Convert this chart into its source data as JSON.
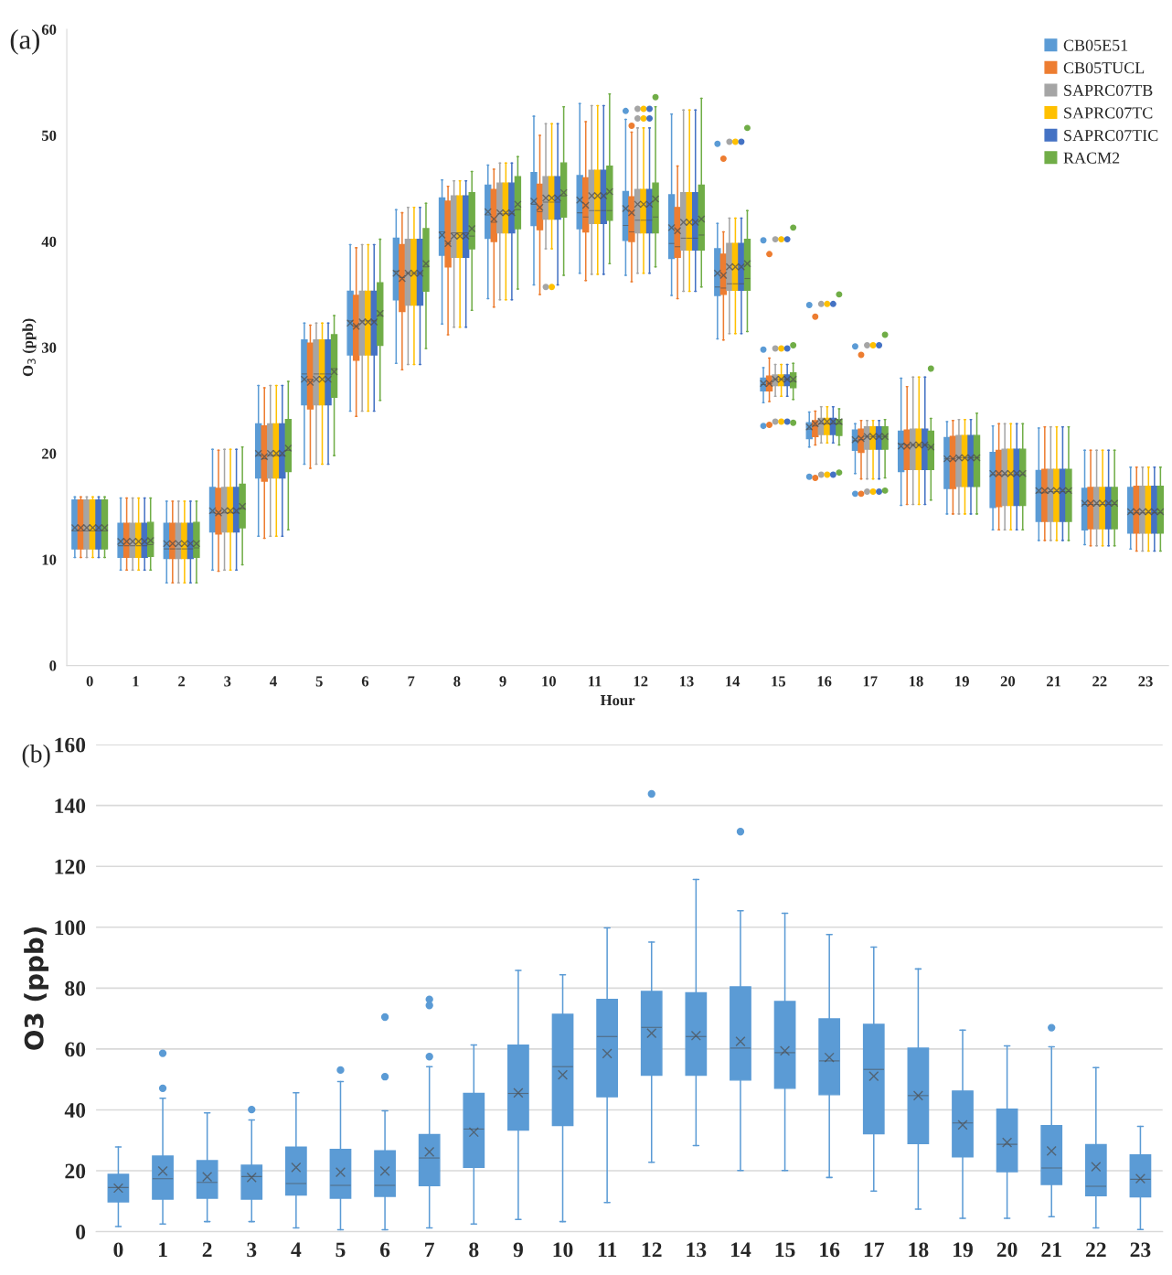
{
  "chart_data": [
    {
      "type": "box",
      "title": "(a)",
      "xlabel": "Hour",
      "ylabel": "O$_{3}$ (ppb)",
      "ylim": [
        0,
        60
      ],
      "yticks": [
        0,
        10,
        20,
        30,
        40,
        50,
        60
      ],
      "grid": false,
      "legend": "top right",
      "categories": [
        "0",
        "1",
        "2",
        "3",
        "4",
        "5",
        "6",
        "7",
        "8",
        "9",
        "10",
        "11",
        "12",
        "13",
        "14",
        "15",
        "16",
        "17",
        "18",
        "19",
        "20",
        "21",
        "22",
        "23"
      ],
      "series": [
        {
          "name": "CB05E51",
          "color": "#5b9bd5",
          "boxes": [
            {
              "low": 10.2,
              "q1": 11,
              "median": 12.7,
              "q3": 15.6,
              "high": 15.9,
              "mean": 13
            },
            {
              "low": 9,
              "q1": 10.2,
              "median": 11.3,
              "q3": 13.4,
              "high": 15.8,
              "mean": 11.7
            },
            {
              "low": 7.8,
              "q1": 10.1,
              "median": 11,
              "q3": 13.4,
              "high": 15.5,
              "mean": 11.5
            },
            {
              "low": 9,
              "q1": 12.6,
              "median": 14.4,
              "q3": 16.8,
              "high": 20.4,
              "mean": 14.6
            },
            {
              "low": 12.2,
              "q1": 17.7,
              "median": 19.8,
              "q3": 22.8,
              "high": 26.4,
              "mean": 20
            },
            {
              "low": 19,
              "q1": 24.6,
              "median": 27.5,
              "q3": 30.7,
              "high": 32.3,
              "mean": 27
            },
            {
              "low": 24,
              "q1": 29.3,
              "median": 32.5,
              "q3": 35.3,
              "high": 39.7,
              "mean": 32.3
            },
            {
              "low": 28.5,
              "q1": 34.5,
              "median": 37.2,
              "q3": 40.3,
              "high": 43,
              "mean": 37
            },
            {
              "low": 32.2,
              "q1": 38.7,
              "median": 40.9,
              "q3": 44.1,
              "high": 45.8,
              "mean": 40.6
            },
            {
              "low": 34.6,
              "q1": 40.3,
              "median": 42.5,
              "q3": 45.3,
              "high": 47.2,
              "mean": 42.8
            },
            {
              "low": 35.9,
              "q1": 41.5,
              "median": 43.5,
              "q3": 46.5,
              "high": 51.8,
              "mean": 43.8
            },
            {
              "low": 37,
              "q1": 41.2,
              "median": 42.7,
              "q3": 46.2,
              "high": 53,
              "mean": 43.9
            },
            {
              "low": 36.8,
              "q1": 40.1,
              "median": 41.5,
              "q3": 44.7,
              "high": 51.5,
              "mean": 43.1,
              "outliers": [
                52.3
              ]
            },
            {
              "low": 34.9,
              "q1": 38.4,
              "median": 39.8,
              "q3": 44.4,
              "high": 52,
              "mean": 41.3
            },
            {
              "low": 30.8,
              "q1": 34.9,
              "median": 35.7,
              "q3": 39.3,
              "high": 41.7,
              "mean": 37,
              "outliers": [
                49.2
              ]
            },
            {
              "low": 24.8,
              "q1": 25.9,
              "median": 26.5,
              "q3": 27.1,
              "high": 28.1,
              "mean": 26.6,
              "outliers": [
                40.1,
                29.8,
                22.6
              ]
            },
            {
              "low": 20.6,
              "q1": 21.4,
              "median": 22.3,
              "q3": 22.9,
              "high": 23.9,
              "mean": 22.5,
              "outliers": [
                34,
                17.8
              ]
            },
            {
              "low": 18.1,
              "q1": 20.3,
              "median": 21.2,
              "q3": 22.2,
              "high": 22.8,
              "mean": 21.3,
              "outliers": [
                30.1,
                16.2
              ]
            },
            {
              "low": 15.1,
              "q1": 18.3,
              "median": 20.9,
              "q3": 22.1,
              "high": 27.1,
              "mean": 20.7
            },
            {
              "low": 14.3,
              "q1": 16.7,
              "median": 19.5,
              "q3": 21.5,
              "high": 23,
              "mean": 19.5
            },
            {
              "low": 12.8,
              "q1": 14.9,
              "median": 18,
              "q3": 20.1,
              "high": 22.6,
              "mean": 18.1
            },
            {
              "low": 11.8,
              "q1": 13.6,
              "median": 16.3,
              "q3": 18.4,
              "high": 22.4,
              "mean": 16.5
            },
            {
              "low": 11.4,
              "q1": 12.8,
              "median": 15.2,
              "q3": 16.7,
              "high": 20.3,
              "mean": 15.3
            },
            {
              "low": 11,
              "q1": 12.5,
              "median": 14.4,
              "q3": 16.8,
              "high": 18.7,
              "mean": 14.5
            }
          ]
        },
        {
          "name": "CB05TUCL",
          "color": "#ed7d31",
          "boxes": [
            {
              "low": 10.2,
              "q1": 11,
              "median": 12.7,
              "q3": 15.6,
              "high": 15.9,
              "mean": 13
            },
            {
              "low": 9,
              "q1": 10.2,
              "median": 11.3,
              "q3": 13.4,
              "high": 15.8,
              "mean": 11.7
            },
            {
              "low": 7.8,
              "q1": 10.1,
              "median": 11,
              "q3": 13.4,
              "high": 15.5,
              "mean": 11.5
            },
            {
              "low": 8.9,
              "q1": 12.4,
              "median": 14.3,
              "q3": 16.7,
              "high": 20.3,
              "mean": 14.4
            },
            {
              "low": 12,
              "q1": 17.4,
              "median": 19.5,
              "q3": 22.6,
              "high": 26.2,
              "mean": 19.7
            },
            {
              "low": 18.6,
              "q1": 24.2,
              "median": 27,
              "q3": 30.4,
              "high": 32.1,
              "mean": 26.7
            },
            {
              "low": 23.5,
              "q1": 28.8,
              "median": 32,
              "q3": 34.9,
              "high": 39.4,
              "mean": 32
            },
            {
              "low": 27.9,
              "q1": 33.4,
              "median": 36.6,
              "q3": 39.7,
              "high": 42.7,
              "mean": 36.5
            },
            {
              "low": 31.2,
              "q1": 37.6,
              "median": 39.8,
              "q3": 43.8,
              "high": 45.2,
              "mean": 39.8
            },
            {
              "low": 33.8,
              "q1": 40,
              "median": 41.8,
              "q3": 44.9,
              "high": 46.8,
              "mean": 42.1
            },
            {
              "low": 35,
              "q1": 41.1,
              "median": 42.8,
              "q3": 45.4,
              "high": 50,
              "mean": 43.2
            },
            {
              "low": 36.3,
              "q1": 40.9,
              "median": 42.3,
              "q3": 46,
              "high": 51.3,
              "mean": 43.4
            },
            {
              "low": 36.2,
              "q1": 40,
              "median": 40.9,
              "q3": 44.2,
              "high": 50.3,
              "mean": 42.7,
              "outliers": [
                50.9
              ]
            },
            {
              "low": 34.6,
              "q1": 38.5,
              "median": 39.5,
              "q3": 43.2,
              "high": 47.1,
              "mean": 41
            },
            {
              "low": 30.7,
              "q1": 35,
              "median": 35.6,
              "q3": 38.8,
              "high": 40.9,
              "mean": 36.8,
              "outliers": [
                47.8
              ]
            },
            {
              "low": 24.9,
              "q1": 25.9,
              "median": 26.6,
              "q3": 27.3,
              "high": 29,
              "mean": 26.6,
              "outliers": [
                38.8,
                22.7
              ]
            },
            {
              "low": 20.8,
              "q1": 21.6,
              "median": 22.6,
              "q3": 23.1,
              "high": 24,
              "mean": 22.8,
              "outliers": [
                32.9,
                17.7
              ]
            },
            {
              "low": 17.6,
              "q1": 20.1,
              "median": 21.3,
              "q3": 22.3,
              "high": 23.1,
              "mean": 21.4,
              "outliers": [
                29.3,
                16.2
              ]
            },
            {
              "low": 15.2,
              "q1": 18.5,
              "median": 20.8,
              "q3": 22.2,
              "high": 26.3,
              "mean": 20.7
            },
            {
              "low": 14.3,
              "q1": 16.7,
              "median": 19.5,
              "q3": 21.6,
              "high": 23.1,
              "mean": 19.5
            },
            {
              "low": 12.8,
              "q1": 15,
              "median": 18,
              "q3": 20.3,
              "high": 22.8,
              "mean": 18.1
            },
            {
              "low": 11.8,
              "q1": 13.6,
              "median": 16.3,
              "q3": 18.5,
              "high": 22.5,
              "mean": 16.5
            },
            {
              "low": 11.3,
              "q1": 12.9,
              "median": 15.2,
              "q3": 16.8,
              "high": 20.3,
              "mean": 15.3
            },
            {
              "low": 10.8,
              "q1": 12.5,
              "median": 14.4,
              "q3": 16.9,
              "high": 18.7,
              "mean": 14.5
            }
          ]
        },
        {
          "name": "SAPRC07TB",
          "color": "#a5a5a5",
          "boxes": [
            {
              "low": 10.2,
              "q1": 11,
              "median": 12.7,
              "q3": 15.6,
              "high": 15.9,
              "mean": 13
            },
            {
              "low": 9,
              "q1": 10.2,
              "median": 11.3,
              "q3": 13.4,
              "high": 15.8,
              "mean": 11.7
            },
            {
              "low": 7.8,
              "q1": 10.1,
              "median": 11,
              "q3": 13.4,
              "high": 15.5,
              "mean": 11.5
            },
            {
              "low": 9,
              "q1": 12.6,
              "median": 14.4,
              "q3": 16.8,
              "high": 20.4,
              "mean": 14.6
            },
            {
              "low": 12.2,
              "q1": 17.7,
              "median": 19.8,
              "q3": 22.8,
              "high": 26.4,
              "mean": 20
            },
            {
              "low": 19,
              "q1": 24.6,
              "median": 27.5,
              "q3": 30.7,
              "high": 32.3,
              "mean": 27
            },
            {
              "low": 24,
              "q1": 29.3,
              "median": 32.5,
              "q3": 35.3,
              "high": 39.7,
              "mean": 32.4
            },
            {
              "low": 28.4,
              "q1": 34,
              "median": 37,
              "q3": 40.2,
              "high": 43.2,
              "mean": 37
            },
            {
              "low": 31.9,
              "q1": 38.5,
              "median": 40.8,
              "q3": 44.3,
              "high": 45.7,
              "mean": 40.5
            },
            {
              "low": 34.5,
              "q1": 40.8,
              "median": 42.6,
              "q3": 45.5,
              "high": 47.4,
              "mean": 42.7
            },
            {
              "low": 39.3,
              "q1": 42.1,
              "median": 43.7,
              "q3": 46.1,
              "high": 51.1,
              "mean": 44.1,
              "outliers": [
                35.7
              ]
            },
            {
              "low": 36.9,
              "q1": 41.7,
              "median": 42.9,
              "q3": 46.7,
              "high": 52.8,
              "mean": 44.3
            },
            {
              "low": 37,
              "q1": 40.8,
              "median": 42,
              "q3": 44.9,
              "high": 50.7,
              "mean": 43.5,
              "outliers": [
                52.5,
                51.6
              ]
            },
            {
              "low": 35.3,
              "q1": 39.2,
              "median": 40.3,
              "q3": 44.6,
              "high": 52.4,
              "mean": 41.8
            },
            {
              "low": 31.3,
              "q1": 35.4,
              "median": 36,
              "q3": 39.8,
              "high": 42.2,
              "mean": 37.6,
              "outliers": [
                49.4
              ]
            },
            {
              "low": 25.4,
              "q1": 26.4,
              "median": 27,
              "q3": 27.4,
              "high": 28.4,
              "mean": 27,
              "outliers": [
                40.2,
                29.9,
                23
              ]
            },
            {
              "low": 21,
              "q1": 21.8,
              "median": 22.8,
              "q3": 23.3,
              "high": 24.4,
              "mean": 23,
              "outliers": [
                34.1,
                18
              ]
            },
            {
              "low": 17.6,
              "q1": 20.4,
              "median": 21.6,
              "q3": 22.5,
              "high": 23.1,
              "mean": 21.6,
              "outliers": [
                30.2,
                16.4
              ]
            },
            {
              "low": 15.2,
              "q1": 18.5,
              "median": 20.8,
              "q3": 22.3,
              "high": 27.2,
              "mean": 20.8
            },
            {
              "low": 14.3,
              "q1": 16.9,
              "median": 19.6,
              "q3": 21.7,
              "high": 23.2,
              "mean": 19.6
            },
            {
              "low": 12.8,
              "q1": 15.1,
              "median": 18,
              "q3": 20.4,
              "high": 22.8,
              "mean": 18.1
            },
            {
              "low": 11.8,
              "q1": 13.6,
              "median": 16.4,
              "q3": 18.5,
              "high": 22.5,
              "mean": 16.5
            },
            {
              "low": 11.3,
              "q1": 12.9,
              "median": 15.2,
              "q3": 16.8,
              "high": 20.3,
              "mean": 15.3
            },
            {
              "low": 10.8,
              "q1": 12.5,
              "median": 14.4,
              "q3": 16.9,
              "high": 18.7,
              "mean": 14.5
            }
          ]
        },
        {
          "name": "SAPRC07TC",
          "color": "#ffc000",
          "boxes": [
            {
              "low": 10.2,
              "q1": 11,
              "median": 12.7,
              "q3": 15.6,
              "high": 15.9,
              "mean": 13
            },
            {
              "low": 9,
              "q1": 10.2,
              "median": 11.3,
              "q3": 13.4,
              "high": 15.8,
              "mean": 11.7
            },
            {
              "low": 7.8,
              "q1": 10.1,
              "median": 11,
              "q3": 13.4,
              "high": 15.5,
              "mean": 11.5
            },
            {
              "low": 9,
              "q1": 12.6,
              "median": 14.4,
              "q3": 16.8,
              "high": 20.4,
              "mean": 14.6
            },
            {
              "low": 12.2,
              "q1": 17.7,
              "median": 19.8,
              "q3": 22.8,
              "high": 26.4,
              "mean": 20
            },
            {
              "low": 19,
              "q1": 24.6,
              "median": 27.5,
              "q3": 30.7,
              "high": 32.3,
              "mean": 27
            },
            {
              "low": 24,
              "q1": 29.3,
              "median": 32.5,
              "q3": 35.3,
              "high": 39.7,
              "mean": 32.4
            },
            {
              "low": 28.4,
              "q1": 34,
              "median": 37,
              "q3": 40.2,
              "high": 43.2,
              "mean": 37
            },
            {
              "low": 31.9,
              "q1": 38.5,
              "median": 40.8,
              "q3": 44.3,
              "high": 45.7,
              "mean": 40.5
            },
            {
              "low": 34.5,
              "q1": 40.8,
              "median": 42.6,
              "q3": 45.5,
              "high": 47.4,
              "mean": 42.7
            },
            {
              "low": 39.3,
              "q1": 42.1,
              "median": 43.7,
              "q3": 46.1,
              "high": 51.1,
              "mean": 44.1,
              "outliers": [
                35.7
              ]
            },
            {
              "low": 36.9,
              "q1": 41.7,
              "median": 42.9,
              "q3": 46.7,
              "high": 52.8,
              "mean": 44.3
            },
            {
              "low": 37,
              "q1": 40.8,
              "median": 42,
              "q3": 44.9,
              "high": 50.7,
              "mean": 43.5,
              "outliers": [
                52.5,
                51.6
              ]
            },
            {
              "low": 35.3,
              "q1": 39.2,
              "median": 40.3,
              "q3": 44.6,
              "high": 52.4,
              "mean": 41.8
            },
            {
              "low": 31.3,
              "q1": 35.4,
              "median": 36,
              "q3": 39.8,
              "high": 42.2,
              "mean": 37.6,
              "outliers": [
                49.4
              ]
            },
            {
              "low": 25.4,
              "q1": 26.4,
              "median": 27,
              "q3": 27.4,
              "high": 28.4,
              "mean": 27,
              "outliers": [
                40.2,
                29.9,
                23
              ]
            },
            {
              "low": 21,
              "q1": 21.8,
              "median": 22.8,
              "q3": 23.3,
              "high": 24.4,
              "mean": 23,
              "outliers": [
                34.1,
                18
              ]
            },
            {
              "low": 17.6,
              "q1": 20.4,
              "median": 21.6,
              "q3": 22.5,
              "high": 23.1,
              "mean": 21.6,
              "outliers": [
                30.2,
                16.4
              ]
            },
            {
              "low": 15.2,
              "q1": 18.5,
              "median": 20.8,
              "q3": 22.3,
              "high": 27.2,
              "mean": 20.8
            },
            {
              "low": 14.3,
              "q1": 16.9,
              "median": 19.6,
              "q3": 21.7,
              "high": 23.2,
              "mean": 19.6
            },
            {
              "low": 12.8,
              "q1": 15.1,
              "median": 18,
              "q3": 20.4,
              "high": 22.8,
              "mean": 18.1
            },
            {
              "low": 11.8,
              "q1": 13.6,
              "median": 16.4,
              "q3": 18.5,
              "high": 22.5,
              "mean": 16.5
            },
            {
              "low": 11.3,
              "q1": 12.9,
              "median": 15.2,
              "q3": 16.8,
              "high": 20.3,
              "mean": 15.3
            },
            {
              "low": 10.8,
              "q1": 12.5,
              "median": 14.4,
              "q3": 16.9,
              "high": 18.7,
              "mean": 14.5
            }
          ]
        },
        {
          "name": "SAPRC07TIC",
          "color": "#4472c4",
          "boxes": [
            {
              "low": 10.2,
              "q1": 11,
              "median": 12.7,
              "q3": 15.6,
              "high": 15.9,
              "mean": 13
            },
            {
              "low": 9,
              "q1": 10.2,
              "median": 11.3,
              "q3": 13.4,
              "high": 15.8,
              "mean": 11.7
            },
            {
              "low": 7.8,
              "q1": 10.1,
              "median": 11,
              "q3": 13.4,
              "high": 15.5,
              "mean": 11.5
            },
            {
              "low": 9,
              "q1": 12.6,
              "median": 14.4,
              "q3": 16.8,
              "high": 20.4,
              "mean": 14.6
            },
            {
              "low": 12.2,
              "q1": 17.7,
              "median": 19.8,
              "q3": 22.8,
              "high": 26.4,
              "mean": 20
            },
            {
              "low": 19,
              "q1": 24.6,
              "median": 27.5,
              "q3": 30.7,
              "high": 32.3,
              "mean": 27
            },
            {
              "low": 24,
              "q1": 29.3,
              "median": 32.5,
              "q3": 35.3,
              "high": 39.7,
              "mean": 32.4
            },
            {
              "low": 28.4,
              "q1": 34,
              "median": 37,
              "q3": 40.2,
              "high": 43.2,
              "mean": 37
            },
            {
              "low": 31.9,
              "q1": 38.5,
              "median": 40.8,
              "q3": 44.3,
              "high": 45.7,
              "mean": 40.5
            },
            {
              "low": 34.5,
              "q1": 40.8,
              "median": 42.6,
              "q3": 45.5,
              "high": 47.4,
              "mean": 42.7
            },
            {
              "low": 35.9,
              "q1": 42.1,
              "median": 43.7,
              "q3": 46.1,
              "high": 51.1,
              "mean": 44.1
            },
            {
              "low": 36.9,
              "q1": 41.7,
              "median": 42.9,
              "q3": 46.7,
              "high": 52.8,
              "mean": 44.3
            },
            {
              "low": 37,
              "q1": 40.8,
              "median": 42,
              "q3": 44.9,
              "high": 50.7,
              "mean": 43.5,
              "outliers": [
                52.5,
                51.6
              ]
            },
            {
              "low": 35.3,
              "q1": 39.2,
              "median": 40.3,
              "q3": 44.6,
              "high": 52.4,
              "mean": 41.8
            },
            {
              "low": 31.3,
              "q1": 35.4,
              "median": 36,
              "q3": 39.8,
              "high": 42.2,
              "mean": 37.6,
              "outliers": [
                49.4
              ]
            },
            {
              "low": 25.4,
              "q1": 26.4,
              "median": 27,
              "q3": 27.4,
              "high": 28.4,
              "mean": 27,
              "outliers": [
                40.2,
                29.9,
                23
              ]
            },
            {
              "low": 21,
              "q1": 21.8,
              "median": 22.8,
              "q3": 23.3,
              "high": 24.4,
              "mean": 23,
              "outliers": [
                34.1,
                18
              ]
            },
            {
              "low": 17.6,
              "q1": 20.4,
              "median": 21.6,
              "q3": 22.5,
              "high": 23.1,
              "mean": 21.6,
              "outliers": [
                30.2,
                16.4
              ]
            },
            {
              "low": 15.2,
              "q1": 18.5,
              "median": 20.8,
              "q3": 22.3,
              "high": 27.2,
              "mean": 20.8
            },
            {
              "low": 14.3,
              "q1": 16.9,
              "median": 19.6,
              "q3": 21.7,
              "high": 23.2,
              "mean": 19.6
            },
            {
              "low": 12.8,
              "q1": 15.1,
              "median": 18,
              "q3": 20.4,
              "high": 22.8,
              "mean": 18.1
            },
            {
              "low": 11.8,
              "q1": 13.6,
              "median": 16.4,
              "q3": 18.5,
              "high": 22.5,
              "mean": 16.5
            },
            {
              "low": 11.3,
              "q1": 12.9,
              "median": 15.2,
              "q3": 16.8,
              "high": 20.3,
              "mean": 15.3
            },
            {
              "low": 10.8,
              "q1": 12.5,
              "median": 14.4,
              "q3": 16.9,
              "high": 18.7,
              "mean": 14.5
            }
          ]
        },
        {
          "name": "RACM2",
          "color": "#70ad47",
          "boxes": [
            {
              "low": 10.2,
              "q1": 11,
              "median": 12.7,
              "q3": 15.6,
              "high": 15.9,
              "mean": 13
            },
            {
              "low": 9,
              "q1": 10.3,
              "median": 11.4,
              "q3": 13.5,
              "high": 15.8,
              "mean": 11.8
            },
            {
              "low": 7.8,
              "q1": 10.2,
              "median": 11.1,
              "q3": 13.5,
              "high": 15.5,
              "mean": 11.5
            },
            {
              "low": 9.5,
              "q1": 13,
              "median": 14.8,
              "q3": 17.1,
              "high": 20.6,
              "mean": 15
            },
            {
              "low": 12.8,
              "q1": 18.3,
              "median": 20.3,
              "q3": 23.2,
              "high": 26.8,
              "mean": 20.5
            },
            {
              "low": 19.8,
              "q1": 25.3,
              "median": 28,
              "q3": 31.2,
              "high": 33,
              "mean": 27.7
            },
            {
              "low": 25,
              "q1": 30.2,
              "median": 33,
              "q3": 36.1,
              "high": 40.2,
              "mean": 33.2
            },
            {
              "low": 29.9,
              "q1": 35.3,
              "median": 37.6,
              "q3": 41.2,
              "high": 43.6,
              "mean": 37.9
            },
            {
              "low": 33.5,
              "q1": 39.3,
              "median": 40.5,
              "q3": 44.6,
              "high": 46.6,
              "mean": 41.2
            },
            {
              "low": 35.5,
              "q1": 41.2,
              "median": 43,
              "q3": 46.1,
              "high": 48,
              "mean": 43.5
            },
            {
              "low": 36.8,
              "q1": 42.3,
              "median": 44.3,
              "q3": 47.4,
              "high": 52.7,
              "mean": 44.6
            },
            {
              "low": 37.9,
              "q1": 42,
              "median": 42.9,
              "q3": 47.1,
              "high": 53.9,
              "mean": 44.7
            },
            {
              "low": 37.6,
              "q1": 40.8,
              "median": 42.3,
              "q3": 45.5,
              "high": 52.7,
              "mean": 44,
              "outliers": [
                53.6
              ]
            },
            {
              "low": 35.7,
              "q1": 39.2,
              "median": 40.6,
              "q3": 45.3,
              "high": 53.5,
              "mean": 42.1
            },
            {
              "low": 31.5,
              "q1": 35.4,
              "median": 36.5,
              "q3": 40.2,
              "high": 42.9,
              "mean": 37.9,
              "outliers": [
                50.7
              ]
            },
            {
              "low": 25.1,
              "q1": 26.2,
              "median": 26.8,
              "q3": 27.6,
              "high": 28.5,
              "mean": 27,
              "outliers": [
                41.3,
                30.2,
                22.9
              ]
            },
            {
              "low": 20.8,
              "q1": 21.7,
              "median": 22.8,
              "q3": 23.2,
              "high": 24.2,
              "mean": 23,
              "outliers": [
                35,
                18.2
              ]
            },
            {
              "low": 17.7,
              "q1": 20.4,
              "median": 21.6,
              "q3": 22.5,
              "high": 23.2,
              "mean": 21.6,
              "outliers": [
                31.2,
                16.5
              ]
            },
            {
              "low": 15.6,
              "q1": 18.5,
              "median": 20.6,
              "q3": 22.1,
              "high": 23.3,
              "mean": 20.6,
              "outliers": [
                28
              ]
            },
            {
              "low": 14.3,
              "q1": 16.9,
              "median": 19.6,
              "q3": 21.7,
              "high": 23.8,
              "mean": 19.6
            },
            {
              "low": 12.8,
              "q1": 15.1,
              "median": 18,
              "q3": 20.4,
              "high": 22.8,
              "mean": 18.1
            },
            {
              "low": 11.8,
              "q1": 13.6,
              "median": 16.4,
              "q3": 18.5,
              "high": 22.5,
              "mean": 16.5
            },
            {
              "low": 11.3,
              "q1": 12.9,
              "median": 15.2,
              "q3": 16.8,
              "high": 20.3,
              "mean": 15.3
            },
            {
              "low": 10.8,
              "q1": 12.5,
              "median": 14.4,
              "q3": 16.9,
              "high": 18.7,
              "mean": 14.5
            }
          ]
        }
      ]
    },
    {
      "type": "box",
      "title": "(b)",
      "ylabel": "O3 (ppb)",
      "ylim": [
        0,
        160
      ],
      "yticks": [
        0,
        20,
        40,
        60,
        80,
        100,
        120,
        140,
        160
      ],
      "grid": "y",
      "categories": [
        "0",
        "1",
        "2",
        "3",
        "4",
        "5",
        "6",
        "7",
        "8",
        "9",
        "10",
        "11",
        "12",
        "13",
        "14",
        "15",
        "16",
        "17",
        "18",
        "19",
        "20",
        "21",
        "22",
        "23"
      ],
      "series": [
        {
          "color": "#5b9bd5",
          "boxes": [
            {
              "low": 1.7,
              "q1": 9.8,
              "median": 14.5,
              "q3": 18.8,
              "high": 27.8,
              "mean": 14.3
            },
            {
              "low": 2.5,
              "q1": 10.7,
              "median": 17.4,
              "q3": 24.8,
              "high": 43.8,
              "mean": 19.9,
              "outliers": [
                58.6,
                47.1
              ]
            },
            {
              "low": 3.3,
              "q1": 11,
              "median": 16.2,
              "q3": 23.3,
              "high": 39,
              "mean": 18
            },
            {
              "low": 3.3,
              "q1": 10.7,
              "median": 18.1,
              "q3": 21.8,
              "high": 36.7,
              "mean": 17.8,
              "outliers": [
                40.1
              ]
            },
            {
              "low": 1.2,
              "q1": 12,
              "median": 15.8,
              "q3": 27.8,
              "high": 45.6,
              "mean": 21.1
            },
            {
              "low": 0.6,
              "q1": 11,
              "median": 15.2,
              "q3": 27,
              "high": 49.3,
              "mean": 19.5,
              "outliers": [
                53.1
              ]
            },
            {
              "low": 0.6,
              "q1": 11.6,
              "median": 15.2,
              "q3": 26.6,
              "high": 39.7,
              "mean": 19.9,
              "outliers": [
                70.5,
                50.9
              ]
            },
            {
              "low": 1.2,
              "q1": 15.1,
              "median": 24.2,
              "q3": 31.9,
              "high": 54.2,
              "mean": 26.2,
              "outliers": [
                76.3,
                74.3,
                57.5
              ]
            },
            {
              "low": 2.5,
              "q1": 21.1,
              "median": 33.7,
              "q3": 45.4,
              "high": 61.3,
              "mean": 32.7
            },
            {
              "low": 4,
              "q1": 33.4,
              "median": 45.4,
              "q3": 61.3,
              "high": 85.8,
              "mean": 45.6
            },
            {
              "low": 3.3,
              "q1": 34.9,
              "median": 54.2,
              "q3": 71.4,
              "high": 84.4,
              "mean": 51.5
            },
            {
              "low": 9.6,
              "q1": 44.3,
              "median": 64.1,
              "q3": 76.3,
              "high": 99.8,
              "mean": 58.5
            },
            {
              "low": 22.8,
              "q1": 51.4,
              "median": 67.1,
              "q3": 78.9,
              "high": 95.1,
              "mean": 65.2,
              "outliers": [
                143.8
              ]
            },
            {
              "low": 28.3,
              "q1": 51.4,
              "median": 64.1,
              "q3": 78.5,
              "high": 115.7,
              "mean": 64.4
            },
            {
              "low": 20.1,
              "q1": 49.8,
              "median": 60.3,
              "q3": 80.4,
              "high": 105.4,
              "mean": 62.5,
              "outliers": [
                131.4
              ]
            },
            {
              "low": 20.1,
              "q1": 47.1,
              "median": 58.8,
              "q3": 75.6,
              "high": 104.6,
              "mean": 59.4
            },
            {
              "low": 17.8,
              "q1": 45,
              "median": 56.1,
              "q3": 69.9,
              "high": 97.6,
              "mean": 57.2
            },
            {
              "low": 13.3,
              "q1": 32.2,
              "median": 53.3,
              "q3": 68.1,
              "high": 93.5,
              "mean": 51.1
            },
            {
              "low": 7.4,
              "q1": 28.9,
              "median": 44.7,
              "q3": 60.3,
              "high": 86.3,
              "mean": 44.7
            },
            {
              "low": 4.4,
              "q1": 24.6,
              "median": 35.7,
              "q3": 46.2,
              "high": 66.2,
              "mean": 35.1
            },
            {
              "low": 4.4,
              "q1": 19.7,
              "median": 28.7,
              "q3": 40.2,
              "high": 61,
              "mean": 29.3
            },
            {
              "low": 4.9,
              "q1": 15.5,
              "median": 20.9,
              "q3": 34.8,
              "high": 60.7,
              "mean": 26.5,
              "outliers": [
                67
              ]
            },
            {
              "low": 1.2,
              "q1": 11.8,
              "median": 14.9,
              "q3": 28.6,
              "high": 53.9,
              "mean": 21.3
            },
            {
              "low": 0.7,
              "q1": 11.4,
              "median": 17.2,
              "q3": 25.2,
              "high": 34.6,
              "mean": 17.4
            }
          ]
        }
      ]
    }
  ]
}
